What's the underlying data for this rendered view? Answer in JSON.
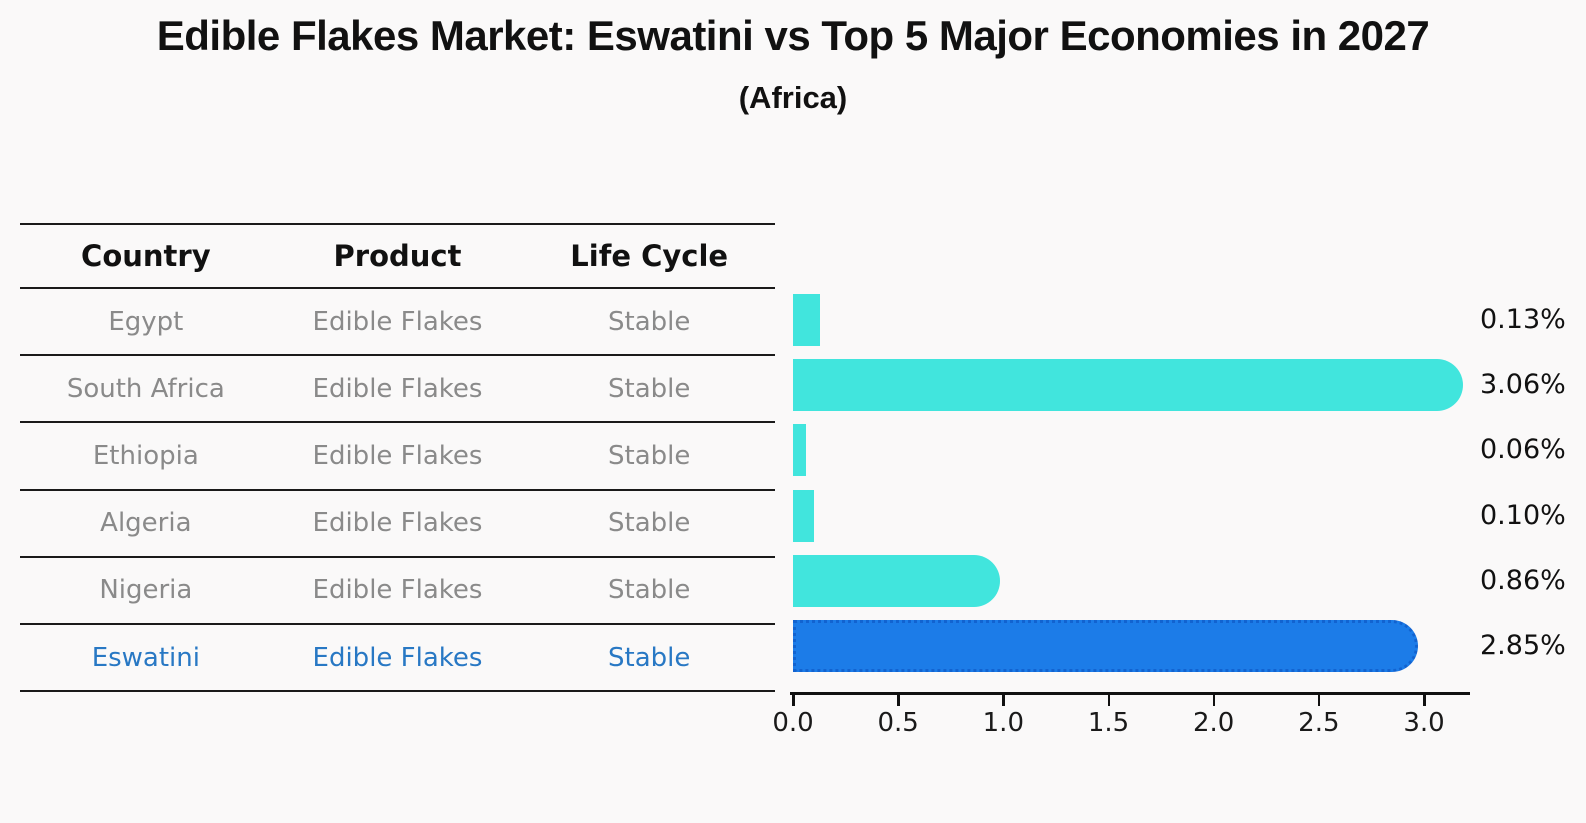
{
  "title": "Edible Flakes Market: Eswatini vs Top 5 Major Economies in 2027",
  "subtitle": "(Africa)",
  "table": {
    "headers": [
      "Country",
      "Product",
      "Life Cycle"
    ],
    "rows": [
      {
        "country": "Egypt",
        "product": "Edible Flakes",
        "life_cycle": "Stable"
      },
      {
        "country": "South Africa",
        "product": "Edible Flakes",
        "life_cycle": "Stable"
      },
      {
        "country": "Ethiopia",
        "product": "Edible Flakes",
        "life_cycle": "Stable"
      },
      {
        "country": "Algeria",
        "product": "Edible Flakes",
        "life_cycle": "Stable"
      },
      {
        "country": "Nigeria",
        "product": "Edible Flakes",
        "life_cycle": "Stable"
      },
      {
        "country": "Eswatini",
        "product": "Edible Flakes",
        "life_cycle": "Stable"
      }
    ]
  },
  "chart_data": {
    "type": "bar",
    "orientation": "horizontal",
    "title": "Edible Flakes Market: Eswatini vs Top 5 Major Economies in 2027",
    "subtitle": "(Africa)",
    "categories": [
      "Egypt",
      "South Africa",
      "Ethiopia",
      "Algeria",
      "Nigeria",
      "Eswatini"
    ],
    "values": [
      0.13,
      3.06,
      0.06,
      0.1,
      0.86,
      2.85
    ],
    "value_labels": [
      "0.13%",
      "3.06%",
      "0.06%",
      "0.10%",
      "0.86%",
      "2.85%"
    ],
    "xticks": [
      "0.0",
      "0.5",
      "1.0",
      "1.5",
      "2.0",
      "2.5",
      "3.0"
    ],
    "xlim": [
      0,
      3.2
    ],
    "grid": false,
    "legend": "none",
    "highlight_category": "Eswatini",
    "colors": {
      "default_bar": "#41e5dd",
      "highlight_bar": "#1c7ce8",
      "highlight_text": "#2878c4",
      "axis": "#111111",
      "row_text": "#8a8a8a"
    }
  }
}
